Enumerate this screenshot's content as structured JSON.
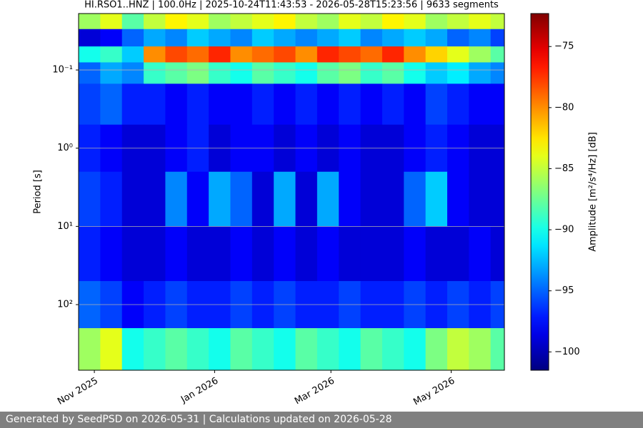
{
  "chart_data": {
    "type": "heatmap",
    "title": "HI.RSO1..HNZ | 100.0Hz | 2025-10-24T11:43:53 - 2026-05-28T15:23:56 | 9633 segments",
    "ylabel": "Period [s]",
    "colorbar_label": "Amplitude [m²/s⁴/Hz] [dB]",
    "colormap": "jet",
    "xlim": [
      "2025-10-24",
      "2026-05-28"
    ],
    "xticks": [
      {
        "value": "2025-11-01",
        "label": "Nov 2025"
      },
      {
        "value": "2026-01-01",
        "label": "Jan 2026"
      },
      {
        "value": "2026-03-01",
        "label": "Mar 2026"
      },
      {
        "value": "2026-05-01",
        "label": "May 2026"
      }
    ],
    "ylim": [
      0.019,
      690
    ],
    "ylog": true,
    "yinverted": true,
    "yticks": [
      {
        "value": 0.1,
        "label": "10⁻¹"
      },
      {
        "value": 1,
        "label": "10⁰"
      },
      {
        "value": 10,
        "label": "10¹"
      },
      {
        "value": 100,
        "label": "10²"
      }
    ],
    "grid": true,
    "clim": [
      -101.5,
      -72.3
    ],
    "cticks": [
      {
        "value": -75,
        "label": "−75"
      },
      {
        "value": -80,
        "label": "−80"
      },
      {
        "value": -85,
        "label": "−85"
      },
      {
        "value": -90,
        "label": "−90"
      },
      {
        "value": -95,
        "label": "−95"
      },
      {
        "value": -100,
        "label": "−100"
      }
    ],
    "xbins": [
      "2025-10-24",
      "2025-11-04",
      "2025-11-15",
      "2025-11-26",
      "2025-12-07",
      "2025-12-18",
      "2025-12-29",
      "2026-01-09",
      "2026-01-20",
      "2026-01-31",
      "2026-02-11",
      "2026-02-22",
      "2026-03-05",
      "2026-03-16",
      "2026-03-27",
      "2026-04-07",
      "2026-04-18",
      "2026-04-29",
      "2026-05-10",
      "2026-05-21",
      "2026-05-28"
    ],
    "ybins": [
      0.019,
      0.03,
      0.05,
      0.08,
      0.15,
      0.5,
      2,
      10,
      50,
      200,
      690
    ],
    "values": [
      [
        -86,
        -84,
        -88,
        -85,
        -83,
        -84,
        -86,
        -85,
        -84,
        -83,
        -85,
        -86,
        -84,
        -85,
        -83,
        -84,
        -86,
        -85,
        -84,
        -85
      ],
      [
        -99,
        -98,
        -95,
        -93,
        -94,
        -92,
        -93,
        -94,
        -92,
        -93,
        -94,
        -93,
        -92,
        -94,
        -93,
        -92,
        -93,
        -95,
        -94,
        -96
      ],
      [
        -90,
        -89,
        -92,
        -80,
        -78,
        -79,
        -77,
        -80,
        -79,
        -78,
        -80,
        -77,
        -78,
        -79,
        -77,
        -80,
        -82,
        -84,
        -86,
        -88
      ],
      [
        -95,
        -93,
        -94,
        -89,
        -88,
        -87,
        -89,
        -90,
        -88,
        -89,
        -90,
        -88,
        -87,
        -89,
        -88,
        -90,
        -92,
        -91,
        -93,
        -94
      ],
      [
        -96,
        -95,
        -97,
        -97,
        -98,
        -97,
        -98,
        -98,
        -97,
        -98,
        -97,
        -98,
        -97,
        -98,
        -97,
        -98,
        -96,
        -97,
        -98,
        -98
      ],
      [
        -97,
        -98,
        -99,
        -99,
        -98,
        -97,
        -99,
        -98,
        -98,
        -99,
        -98,
        -99,
        -98,
        -99,
        -99,
        -98,
        -97,
        -98,
        -99,
        -99
      ],
      [
        -96,
        -97,
        -99,
        -99,
        -94,
        -98,
        -93,
        -95,
        -99,
        -93,
        -99,
        -93,
        -98,
        -99,
        -99,
        -95,
        -92,
        -98,
        -99,
        -99
      ],
      [
        -97,
        -98,
        -99,
        -99,
        -98,
        -99,
        -99,
        -98,
        -99,
        -98,
        -99,
        -98,
        -99,
        -99,
        -99,
        -98,
        -99,
        -99,
        -98,
        -99
      ],
      [
        -95,
        -96,
        -98,
        -97,
        -96,
        -97,
        -97,
        -96,
        -97,
        -96,
        -97,
        -97,
        -96,
        -97,
        -97,
        -96,
        -97,
        -96,
        -97,
        -96
      ],
      [
        -86,
        -84,
        -90,
        -89,
        -88,
        -89,
        -90,
        -88,
        -89,
        -90,
        -88,
        -89,
        -90,
        -88,
        -89,
        -90,
        -87,
        -85,
        -86,
        -88
      ]
    ]
  },
  "footer": "Generated by SeedPSD on 2026-05-31 | Calculations updated on 2026-05-28"
}
